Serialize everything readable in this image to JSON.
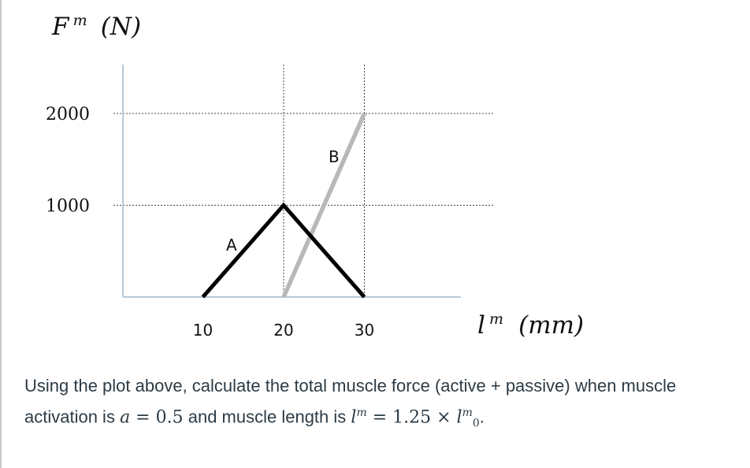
{
  "chart_data": {
    "type": "line",
    "ylabel": "F^m (N)",
    "ylabel_base": "F",
    "ylabel_sup": "m",
    "ylabel_unit": "(N)",
    "xlabel": "l^m (mm)",
    "xlabel_base": "l",
    "xlabel_sup": "m",
    "xlabel_unit": "(mm)",
    "xlim": [
      0,
      36
    ],
    "ylim": [
      0,
      2000
    ],
    "x_ticks": [
      10,
      20,
      30
    ],
    "y_ticks": [
      1000,
      2000
    ],
    "x_tick_labels": [
      "10",
      "20",
      "30"
    ],
    "y_tick_labels": [
      "1000",
      "2000"
    ],
    "grid": "dashed at ticks",
    "series": [
      {
        "name": "A",
        "color": "#000000",
        "x": [
          10,
          20,
          30
        ],
        "y": [
          0,
          1000,
          0
        ]
      },
      {
        "name": "B",
        "color": "#b8b8b8",
        "x": [
          20,
          30
        ],
        "y": [
          0,
          2000
        ]
      }
    ]
  },
  "question": {
    "line1": "Using the plot above, calculate the total muscle force (active + passive) when muscle",
    "line2_prefix": "activation is ",
    "a_symbol": "a",
    "equals": " = ",
    "a_value": "0.5",
    "mid_text": " and muscle length is ",
    "l_symbol": "l",
    "l_sup": "m",
    "l_equals": " = 1.25 × ",
    "l0_symbol": "l",
    "l0_sup": "m",
    "l0_sub": "0",
    "end_period": "."
  }
}
